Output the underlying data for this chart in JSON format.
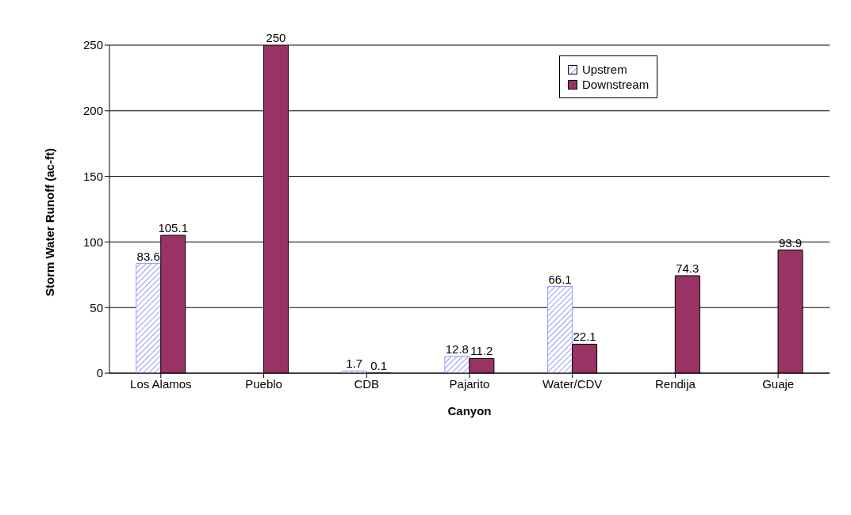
{
  "chart_data": {
    "type": "bar",
    "xlabel": "Canyon",
    "ylabel": "Storm Water Runoff (ac-ft)",
    "categories": [
      "Los Alamos",
      "Pueblo",
      "CDB",
      "Pajarito",
      "Water/CDV",
      "Rendija",
      "Guaje"
    ],
    "series": [
      {
        "name": "Upstrem",
        "color": "#9999ff",
        "values": [
          83.6,
          null,
          1.7,
          12.8,
          66.1,
          null,
          null
        ]
      },
      {
        "name": "Downstream",
        "color": "#993366",
        "values": [
          105.1,
          250,
          0.1,
          11.2,
          22.1,
          74.3,
          93.9
        ]
      }
    ],
    "ylim": [
      0,
      250
    ],
    "yticks": [
      0,
      50,
      100,
      150,
      200,
      250
    ],
    "grid": "y",
    "legend": "top right",
    "data_labels": true
  }
}
